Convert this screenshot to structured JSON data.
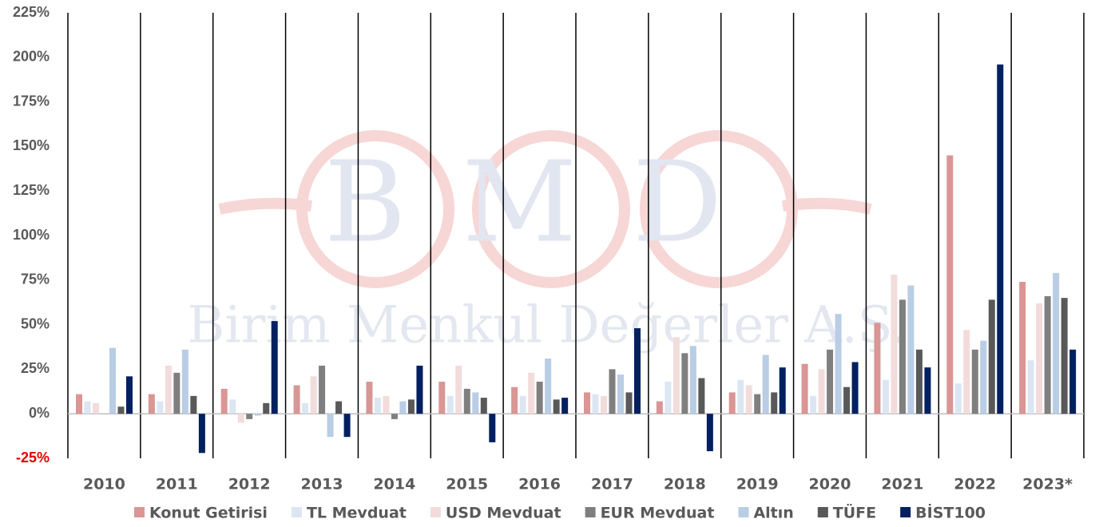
{
  "chart_data": {
    "type": "bar",
    "watermark": {
      "logo": "BMD",
      "text": "Birim Menkul Değerler A.Ş."
    },
    "categories": [
      "2010",
      "2011",
      "2012",
      "2013",
      "2014",
      "2015",
      "2016",
      "2017",
      "2018",
      "2019",
      "2020",
      "2021",
      "2022",
      "2023*"
    ],
    "series": [
      {
        "name": "Konut Getirisi",
        "color": "#d99694",
        "values": [
          11,
          11,
          14,
          16,
          18,
          18,
          15,
          12,
          7,
          12,
          28,
          51,
          145,
          74
        ]
      },
      {
        "name": "TL Mevduat",
        "color": "#dce6f2",
        "values": [
          7,
          7,
          8,
          6,
          9,
          10,
          10,
          11,
          18,
          19,
          10,
          19,
          17,
          30
        ]
      },
      {
        "name": "USD Mevduat",
        "color": "#f2dcdb",
        "values": [
          6,
          27,
          -5,
          21,
          10,
          27,
          23,
          10,
          43,
          16,
          25,
          78,
          47,
          62
        ]
      },
      {
        "name": "EUR Mevduat",
        "color": "#7f7f7f",
        "values": [
          0,
          23,
          -3,
          27,
          -3,
          14,
          18,
          25,
          34,
          11,
          36,
          64,
          36,
          66
        ]
      },
      {
        "name": "Altın",
        "color": "#b9cde5",
        "values": [
          37,
          36,
          -1,
          -13,
          7,
          12,
          31,
          22,
          38,
          33,
          56,
          72,
          41,
          79
        ]
      },
      {
        "name": "TÜFE",
        "color": "#595959",
        "values": [
          4,
          10,
          6,
          7,
          8,
          9,
          8,
          12,
          20,
          12,
          15,
          36,
          64,
          65
        ]
      },
      {
        "name": "BİST100",
        "color": "#002060",
        "values": [
          21,
          -22,
          52,
          -13,
          27,
          -16,
          9,
          48,
          -21,
          26,
          29,
          26,
          196,
          36
        ]
      }
    ],
    "ylim": [
      -25,
      225
    ],
    "yticks": [
      {
        "value": -25,
        "label": "-25%"
      },
      {
        "value": 0,
        "label": "0%"
      },
      {
        "value": 25,
        "label": "25%"
      },
      {
        "value": 50,
        "label": "50%"
      },
      {
        "value": 75,
        "label": "75%"
      },
      {
        "value": 100,
        "label": "100%"
      },
      {
        "value": 125,
        "label": "125%"
      },
      {
        "value": 150,
        "label": "150%"
      },
      {
        "value": 175,
        "label": "175%"
      },
      {
        "value": 200,
        "label": "200%"
      },
      {
        "value": 225,
        "label": "225%"
      }
    ],
    "negative_tick_color": "#e00000",
    "category_separators": true,
    "legend": "bottom"
  }
}
